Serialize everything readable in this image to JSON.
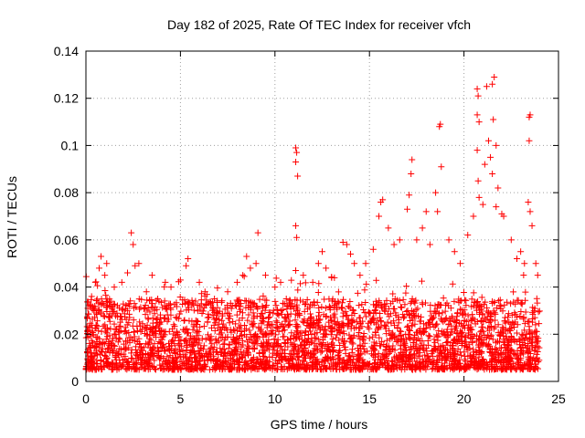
{
  "chart_data": {
    "type": "scatter",
    "title": "Day 182 of 2025, Rate Of TEC Index for receiver vfch",
    "xlabel": "GPS time / hours",
    "ylabel": "ROTI / TECUs",
    "xlim": [
      0,
      25
    ],
    "ylim": [
      0,
      0.14
    ],
    "x_ticks": [
      0,
      5,
      10,
      15,
      20,
      25
    ],
    "x_tick_labels": [
      "0",
      "5",
      "10",
      "15",
      "20",
      "25"
    ],
    "y_ticks": [
      0,
      0.02,
      0.04,
      0.06,
      0.08,
      0.1,
      0.12,
      0.14
    ],
    "y_tick_labels": [
      "0",
      "0.02",
      "0.04",
      "0.06",
      "0.08",
      "0.1",
      "0.12",
      "0.14"
    ],
    "grid": true,
    "marker": "+",
    "color": "#ff0000",
    "x_range_of_data": [
      0,
      24
    ],
    "baseline_band": [
      0.005,
      0.035
    ],
    "series": [
      {
        "name": "ROTI",
        "points": [
          [
            0.1,
            0.031
          ],
          [
            0.3,
            0.036
          ],
          [
            0.5,
            0.042
          ],
          [
            0.7,
            0.048
          ],
          [
            0.8,
            0.053
          ],
          [
            1.0,
            0.045
          ],
          [
            1.1,
            0.05
          ],
          [
            1.5,
            0.04
          ],
          [
            1.9,
            0.042
          ],
          [
            2.2,
            0.046
          ],
          [
            2.4,
            0.063
          ],
          [
            2.5,
            0.058
          ],
          [
            2.6,
            0.049
          ],
          [
            2.8,
            0.05
          ],
          [
            3.2,
            0.038
          ],
          [
            3.5,
            0.045
          ],
          [
            3.8,
            0.035
          ],
          [
            4.2,
            0.042
          ],
          [
            4.5,
            0.04
          ],
          [
            5.0,
            0.043
          ],
          [
            5.3,
            0.049
          ],
          [
            5.4,
            0.052
          ],
          [
            6.0,
            0.042
          ],
          [
            6.3,
            0.038
          ],
          [
            6.8,
            0.035
          ],
          [
            7.5,
            0.038
          ],
          [
            8.0,
            0.042
          ],
          [
            8.3,
            0.045
          ],
          [
            8.5,
            0.053
          ],
          [
            8.7,
            0.048
          ],
          [
            9.0,
            0.05
          ],
          [
            9.1,
            0.063
          ],
          [
            9.5,
            0.045
          ],
          [
            10.0,
            0.04
          ],
          [
            10.3,
            0.042
          ],
          [
            10.6,
            0.035
          ],
          [
            11.1,
            0.099
          ],
          [
            11.15,
            0.097
          ],
          [
            11.1,
            0.093
          ],
          [
            11.2,
            0.087
          ],
          [
            11.1,
            0.066
          ],
          [
            11.15,
            0.061
          ],
          [
            11.1,
            0.047
          ],
          [
            11.5,
            0.045
          ],
          [
            12.0,
            0.042
          ],
          [
            12.3,
            0.05
          ],
          [
            12.5,
            0.055
          ],
          [
            12.7,
            0.048
          ],
          [
            13.0,
            0.044
          ],
          [
            13.6,
            0.059
          ],
          [
            13.8,
            0.058
          ],
          [
            14.0,
            0.054
          ],
          [
            14.2,
            0.05
          ],
          [
            14.5,
            0.045
          ],
          [
            14.8,
            0.05
          ],
          [
            15.2,
            0.056
          ],
          [
            15.5,
            0.07
          ],
          [
            15.6,
            0.076
          ],
          [
            15.7,
            0.077
          ],
          [
            16.0,
            0.065
          ],
          [
            16.3,
            0.058
          ],
          [
            16.6,
            0.06
          ],
          [
            17.0,
            0.073
          ],
          [
            17.1,
            0.079
          ],
          [
            17.2,
            0.088
          ],
          [
            17.25,
            0.094
          ],
          [
            17.5,
            0.06
          ],
          [
            17.8,
            0.065
          ],
          [
            18.0,
            0.072
          ],
          [
            18.2,
            0.058
          ],
          [
            18.5,
            0.08
          ],
          [
            18.6,
            0.072
          ],
          [
            18.7,
            0.108
          ],
          [
            18.75,
            0.109
          ],
          [
            18.8,
            0.091
          ],
          [
            19.2,
            0.06
          ],
          [
            19.5,
            0.055
          ],
          [
            19.8,
            0.05
          ],
          [
            20.2,
            0.062
          ],
          [
            20.5,
            0.07
          ],
          [
            20.7,
            0.124
          ],
          [
            20.75,
            0.121
          ],
          [
            20.7,
            0.113
          ],
          [
            20.8,
            0.11
          ],
          [
            20.7,
            0.098
          ],
          [
            20.75,
            0.085
          ],
          [
            20.8,
            0.078
          ],
          [
            21.0,
            0.075
          ],
          [
            21.1,
            0.092
          ],
          [
            21.2,
            0.125
          ],
          [
            21.3,
            0.102
          ],
          [
            21.4,
            0.095
          ],
          [
            21.5,
            0.126
          ],
          [
            21.6,
            0.129
          ],
          [
            21.55,
            0.111
          ],
          [
            21.7,
            0.1
          ],
          [
            21.5,
            0.088
          ],
          [
            21.8,
            0.082
          ],
          [
            21.7,
            0.074
          ],
          [
            22.0,
            0.071
          ],
          [
            22.1,
            0.07
          ],
          [
            22.5,
            0.06
          ],
          [
            22.8,
            0.052
          ],
          [
            23.0,
            0.055
          ],
          [
            23.2,
            0.05
          ],
          [
            23.4,
            0.076
          ],
          [
            23.45,
            0.112
          ],
          [
            23.5,
            0.113
          ],
          [
            23.45,
            0.102
          ],
          [
            23.5,
            0.072
          ],
          [
            23.6,
            0.066
          ],
          [
            23.8,
            0.05
          ],
          [
            23.9,
            0.045
          ]
        ]
      }
    ]
  }
}
